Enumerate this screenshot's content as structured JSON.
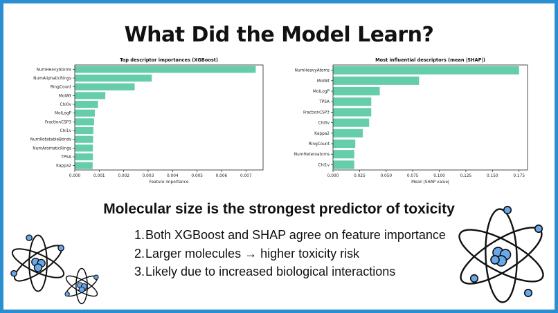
{
  "title": "What Did the Model Learn?",
  "subtitle": "Molecular size is the strongest predictor of toxicity",
  "points": [
    "Both XGBoost and SHAP agree on feature importance",
    "Larger molecules → higher toxicity risk",
    "Likely due to increased biological interactions"
  ],
  "colors": {
    "bar": "#66cdaa",
    "border": "#2a8fd0"
  },
  "icons": [
    "atom-icon"
  ],
  "chart_data": [
    {
      "type": "bar",
      "orientation": "horizontal",
      "title": "Top descriptor importances (XGBoost)",
      "xlabel": "Feature importance",
      "ylabel": "",
      "xlim": [
        0,
        0.0077
      ],
      "xticks": [
        0.0,
        0.001,
        0.002,
        0.003,
        0.004,
        0.005,
        0.006,
        0.007
      ],
      "xtick_labels": [
        "0.000",
        "0.001",
        "0.002",
        "0.003",
        "0.004",
        "0.005",
        "0.006",
        "0.007"
      ],
      "categories": [
        "NumHeavyAtoms",
        "NumAliphaticRings",
        "RingCount",
        "MolWt",
        "Chi0v",
        "MolLogP",
        "FractionCSP3",
        "Chi1v",
        "NumRotatableBonds",
        "NumAromaticRings",
        "TPSA",
        "Kappa2"
      ],
      "values": [
        0.0074,
        0.00315,
        0.00245,
        0.00125,
        0.00095,
        0.00082,
        0.00079,
        0.00076,
        0.00075,
        0.00074,
        0.00074,
        0.00073
      ],
      "grid": false
    },
    {
      "type": "bar",
      "orientation": "horizontal",
      "title": "Most influential descriptors (mean |SHAP|)",
      "xlabel": "Mean |SHAP value|",
      "ylabel": "",
      "xlim": [
        0,
        0.183
      ],
      "xticks": [
        0.0,
        0.025,
        0.05,
        0.075,
        0.1,
        0.125,
        0.15,
        0.175
      ],
      "xtick_labels": [
        "0.000",
        "0.025",
        "0.050",
        "0.075",
        "0.100",
        "0.125",
        "0.150",
        "0.175"
      ],
      "categories": [
        "NumHeavyAtoms",
        "MolWt",
        "MolLogP",
        "TPSA",
        "FractionCSP3",
        "Chi0v",
        "Kappa2",
        "RingCount",
        "NumHeteroatoms",
        "Chi1v"
      ],
      "values": [
        0.175,
        0.081,
        0.044,
        0.036,
        0.036,
        0.034,
        0.028,
        0.021,
        0.02,
        0.02
      ],
      "grid": false
    }
  ]
}
